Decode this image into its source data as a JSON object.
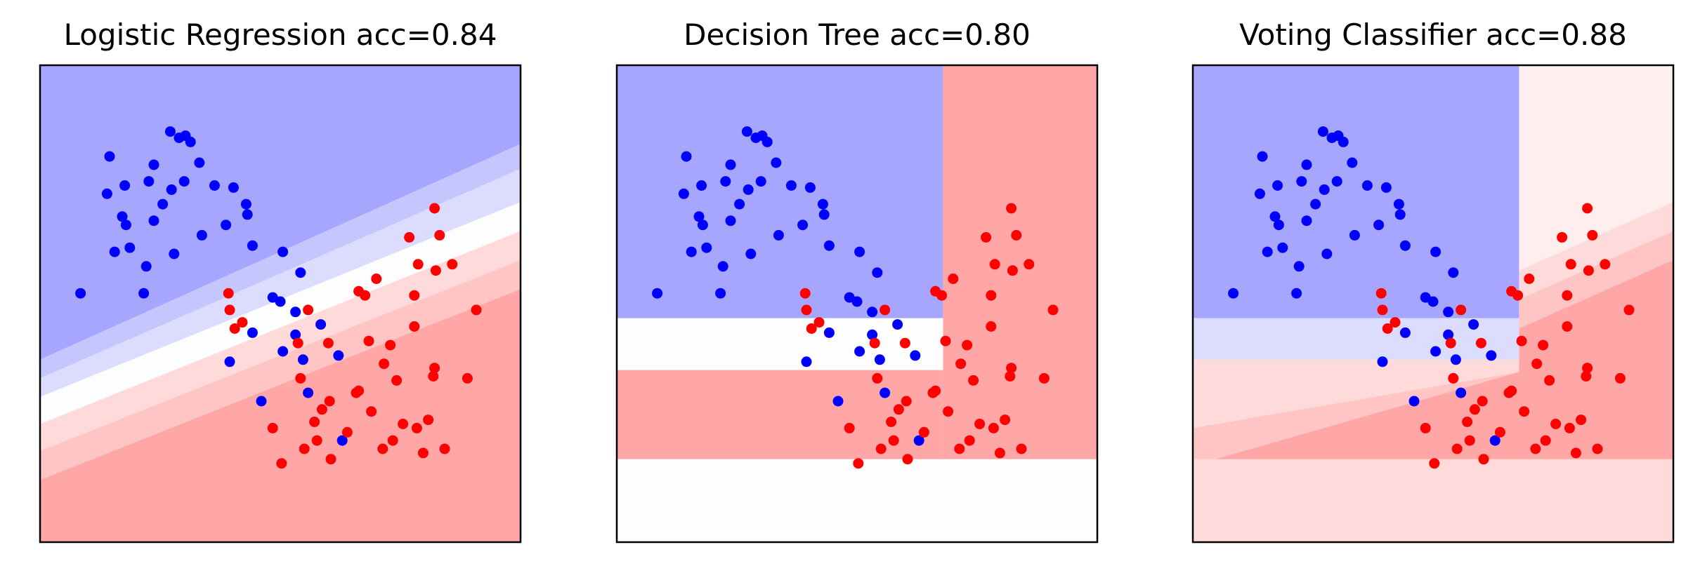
{
  "colors": {
    "blue_point": "#0000ff",
    "red_point": "#ff0000",
    "blue_region_strong": "#a6a6ff",
    "blue_region_mid": "#c6c6ff",
    "blue_region_light": "#dcdcff",
    "neutral": "#fdfdfd",
    "red_region_light": "#ffdada",
    "red_region_mid": "#ffc4c4",
    "red_region_strong": "#ffa6a6",
    "red_region_faint": "#ffeeee"
  },
  "points": {
    "blue": [
      [
        -0.85,
        0.57
      ],
      [
        -0.82,
        0.53
      ],
      [
        -0.97,
        0.68
      ],
      [
        -0.68,
        0.2
      ],
      [
        -0.95,
        0.86
      ],
      [
        -0.66,
        0.33
      ],
      [
        -0.79,
        0.42
      ],
      [
        -0.47,
        0.98
      ],
      [
        -0.46,
        0.7
      ],
      [
        -0.44,
        0.39
      ],
      [
        -0.4,
        0.95
      ],
      [
        -0.35,
        0.96
      ],
      [
        -0.31,
        0.93
      ],
      [
        -0.36,
        0.74
      ],
      [
        -0.24,
        0.83
      ],
      [
        -0.12,
        0.72
      ],
      [
        -0.22,
        0.48
      ],
      [
        -0.03,
        0.53
      ],
      [
        0.03,
        0.71
      ],
      [
        0.14,
        0.58
      ],
      [
        0.18,
        0.43
      ],
      [
        0.18,
        0.01
      ],
      [
        0.42,
        0.4
      ],
      [
        0.52,
        0.0
      ],
      [
        0.52,
        0.11
      ],
      [
        0.4,
        0.16
      ],
      [
        0.58,
        -0.12
      ],
      [
        0.62,
        -0.28
      ],
      [
        0.86,
        -0.1
      ],
      [
        0.89,
        -0.51
      ],
      [
        0.0,
        -0.13
      ],
      [
        0.34,
        0.18
      ],
      [
        -0.53,
        0.63
      ],
      [
        -0.6,
        0.82
      ],
      [
        -0.83,
        0.72
      ],
      [
        -0.6,
        0.55
      ],
      [
        -1.18,
        0.2
      ],
      [
        -0.91,
        0.4
      ],
      [
        -0.64,
        0.74
      ],
      [
        0.25,
        -0.32
      ],
      [
        0.13,
        0.63
      ],
      [
        0.42,
        -0.08
      ],
      [
        0.56,
        0.3
      ],
      [
        0.72,
        0.05
      ]
    ],
    "red": [
      [
        0.67,
        -0.42
      ],
      [
        1.02,
        -0.27
      ],
      [
        1.12,
        -0.37
      ],
      [
        0.41,
        -0.62
      ],
      [
        1.22,
        -0.14
      ],
      [
        1.46,
        0.04
      ],
      [
        1.66,
        0.48
      ],
      [
        1.62,
        0.61
      ],
      [
        1.46,
        0.19
      ],
      [
        1.49,
        0.34
      ],
      [
        1.95,
        0.12
      ],
      [
        1.62,
        -0.16
      ],
      [
        1.48,
        -0.45
      ],
      [
        1.76,
        0.34
      ],
      [
        1.88,
        -0.21
      ],
      [
        1.1,
        -0.03
      ],
      [
        0.62,
        0.12
      ],
      [
        1.37,
        -0.43
      ],
      [
        0.56,
        -0.21
      ],
      [
        0.79,
        -0.32
      ],
      [
        0.73,
        -0.36
      ],
      [
        1.61,
        -0.2
      ],
      [
        1.7,
        -0.55
      ],
      [
        1.53,
        -0.57
      ],
      [
        1.57,
        -0.41
      ],
      [
        1.21,
        -0.55
      ],
      [
        0.54,
        -0.04
      ],
      [
        0.78,
        -0.04
      ],
      [
        0.34,
        -0.45
      ],
      [
        1.32,
        -0.22
      ],
      [
        0.04,
        0.03
      ],
      [
        0.0,
        0.12
      ],
      [
        -0.01,
        0.2
      ],
      [
        0.1,
        0.06
      ],
      [
        1.42,
        0.47
      ],
      [
        1.63,
        0.31
      ],
      [
        1.0,
        -0.28
      ],
      [
        0.93,
        -0.47
      ],
      [
        0.8,
        -0.6
      ],
      [
        0.59,
        -0.55
      ],
      [
        1.27,
        -0.05
      ],
      [
        1.07,
        0.19
      ],
      [
        1.16,
        0.27
      ],
      [
        1.29,
        -0.51
      ],
      [
        0.69,
        -0.51
      ],
      [
        1.02,
        0.21
      ]
    ]
  },
  "chart_data": [
    {
      "type": "scatter",
      "title": "Logistic Regression acc=0.84",
      "xlim": [
        -1.5,
        2.3
      ],
      "ylim": [
        -1.0,
        1.3
      ],
      "grid": false,
      "xticks": [],
      "yticks": [],
      "xlabel": "",
      "ylabel": "",
      "regions": [
        {
          "color": "blue_region_strong",
          "polygon": [
            [
              -1.5,
              -0.12
            ],
            [
              2.3,
              0.92
            ],
            [
              2.3,
              1.3
            ],
            [
              -1.5,
              1.3
            ]
          ]
        },
        {
          "color": "blue_region_mid",
          "polygon": [
            [
              -1.5,
              -0.21
            ],
            [
              2.3,
              0.8
            ],
            [
              2.3,
              0.92
            ],
            [
              -1.5,
              -0.12
            ]
          ]
        },
        {
          "color": "blue_region_light",
          "polygon": [
            [
              -1.5,
              -0.3
            ],
            [
              2.3,
              0.64
            ],
            [
              2.3,
              0.8
            ],
            [
              -1.5,
              -0.21
            ]
          ]
        },
        {
          "color": "neutral",
          "polygon": [
            [
              -1.5,
              -0.43
            ],
            [
              2.3,
              0.5
            ],
            [
              2.3,
              0.64
            ],
            [
              -1.5,
              -0.3
            ]
          ]
        },
        {
          "color": "red_region_light",
          "polygon": [
            [
              -1.5,
              -0.56
            ],
            [
              2.3,
              0.36
            ],
            [
              2.3,
              0.5
            ],
            [
              -1.5,
              -0.43
            ]
          ]
        },
        {
          "color": "red_region_mid",
          "polygon": [
            [
              -1.5,
              -0.7
            ],
            [
              2.3,
              0.22
            ],
            [
              2.3,
              0.36
            ],
            [
              -1.5,
              -0.56
            ]
          ]
        },
        {
          "color": "red_region_strong",
          "polygon": [
            [
              -1.5,
              -1.0
            ],
            [
              2.3,
              -1.0
            ],
            [
              2.3,
              0.22
            ],
            [
              -1.5,
              -0.7
            ]
          ]
        }
      ]
    },
    {
      "type": "scatter",
      "title": "Decision Tree acc=0.80",
      "xlim": [
        -1.5,
        2.3
      ],
      "ylim": [
        -1.0,
        1.3
      ],
      "grid": false,
      "xticks": [],
      "yticks": [],
      "xlabel": "",
      "ylabel": "",
      "regions": [
        {
          "color": "blue_region_strong",
          "polygon": [
            [
              -1.5,
              0.08
            ],
            [
              1.08,
              0.08
            ],
            [
              1.08,
              1.3
            ],
            [
              -1.5,
              1.3
            ]
          ]
        },
        {
          "color": "red_region_strong",
          "polygon": [
            [
              1.08,
              -0.6
            ],
            [
              2.3,
              -0.6
            ],
            [
              2.3,
              1.3
            ],
            [
              1.08,
              1.3
            ]
          ]
        },
        {
          "color": "neutral",
          "polygon": [
            [
              -1.5,
              -0.17
            ],
            [
              1.08,
              -0.17
            ],
            [
              1.08,
              0.08
            ],
            [
              -1.5,
              0.08
            ]
          ]
        },
        {
          "color": "red_region_strong",
          "polygon": [
            [
              -1.5,
              -0.6
            ],
            [
              1.08,
              -0.6
            ],
            [
              1.08,
              -0.17
            ],
            [
              -1.5,
              -0.17
            ]
          ]
        },
        {
          "color": "neutral",
          "polygon": [
            [
              -1.5,
              -1.0
            ],
            [
              2.3,
              -1.0
            ],
            [
              2.3,
              -0.6
            ],
            [
              -1.5,
              -0.6
            ]
          ]
        }
      ]
    },
    {
      "type": "scatter",
      "title": "Voting Classifier acc=0.88",
      "xlim": [
        -1.5,
        2.3
      ],
      "ylim": [
        -1.0,
        1.3
      ],
      "grid": false,
      "xticks": [],
      "yticks": [],
      "xlabel": "",
      "ylabel": "",
      "regions": [
        {
          "color": "red_region_faint",
          "polygon": [
            [
              1.08,
              -0.6
            ],
            [
              2.3,
              -0.6
            ],
            [
              2.3,
              1.3
            ],
            [
              1.08,
              1.3
            ]
          ]
        },
        {
          "color": "red_region_light",
          "polygon": [
            [
              1.08,
              -0.6
            ],
            [
              2.3,
              -0.6
            ],
            [
              2.3,
              0.64
            ],
            [
              1.08,
              0.31
            ]
          ]
        },
        {
          "color": "red_region_mid",
          "polygon": [
            [
              1.08,
              -0.6
            ],
            [
              2.3,
              -0.6
            ],
            [
              2.3,
              0.5
            ],
            [
              1.08,
              0.17
            ]
          ]
        },
        {
          "color": "red_region_strong",
          "polygon": [
            [
              1.08,
              -0.6
            ],
            [
              2.3,
              -0.6
            ],
            [
              2.3,
              0.36
            ],
            [
              1.08,
              0.03
            ]
          ]
        },
        {
          "color": "blue_region_strong",
          "polygon": [
            [
              -1.5,
              0.08
            ],
            [
              1.08,
              0.08
            ],
            [
              1.08,
              1.3
            ],
            [
              -1.5,
              1.3
            ]
          ]
        },
        {
          "color": "blue_region_light",
          "polygon": [
            [
              -1.5,
              -0.12
            ],
            [
              1.08,
              -0.12
            ],
            [
              1.08,
              0.08
            ],
            [
              -1.5,
              0.08
            ]
          ]
        },
        {
          "color": "red_region_light",
          "polygon": [
            [
              -1.5,
              -0.6
            ],
            [
              1.08,
              -0.6
            ],
            [
              1.08,
              -0.12
            ],
            [
              -1.5,
              -0.12
            ]
          ]
        },
        {
          "color": "red_region_mid",
          "polygon": [
            [
              -1.5,
              -0.6
            ],
            [
              1.08,
              -0.6
            ],
            [
              1.08,
              -0.18
            ],
            [
              -1.5,
              -0.45
            ]
          ]
        },
        {
          "color": "red_region_strong",
          "polygon": [
            [
              -1.32,
              -0.6
            ],
            [
              1.08,
              -0.6
            ],
            [
              1.08,
              -0.18
            ]
          ]
        },
        {
          "color": "red_region_light",
          "polygon": [
            [
              -1.5,
              -1.0
            ],
            [
              2.3,
              -1.0
            ],
            [
              2.3,
              -0.6
            ],
            [
              -1.5,
              -0.6
            ]
          ]
        }
      ]
    }
  ]
}
